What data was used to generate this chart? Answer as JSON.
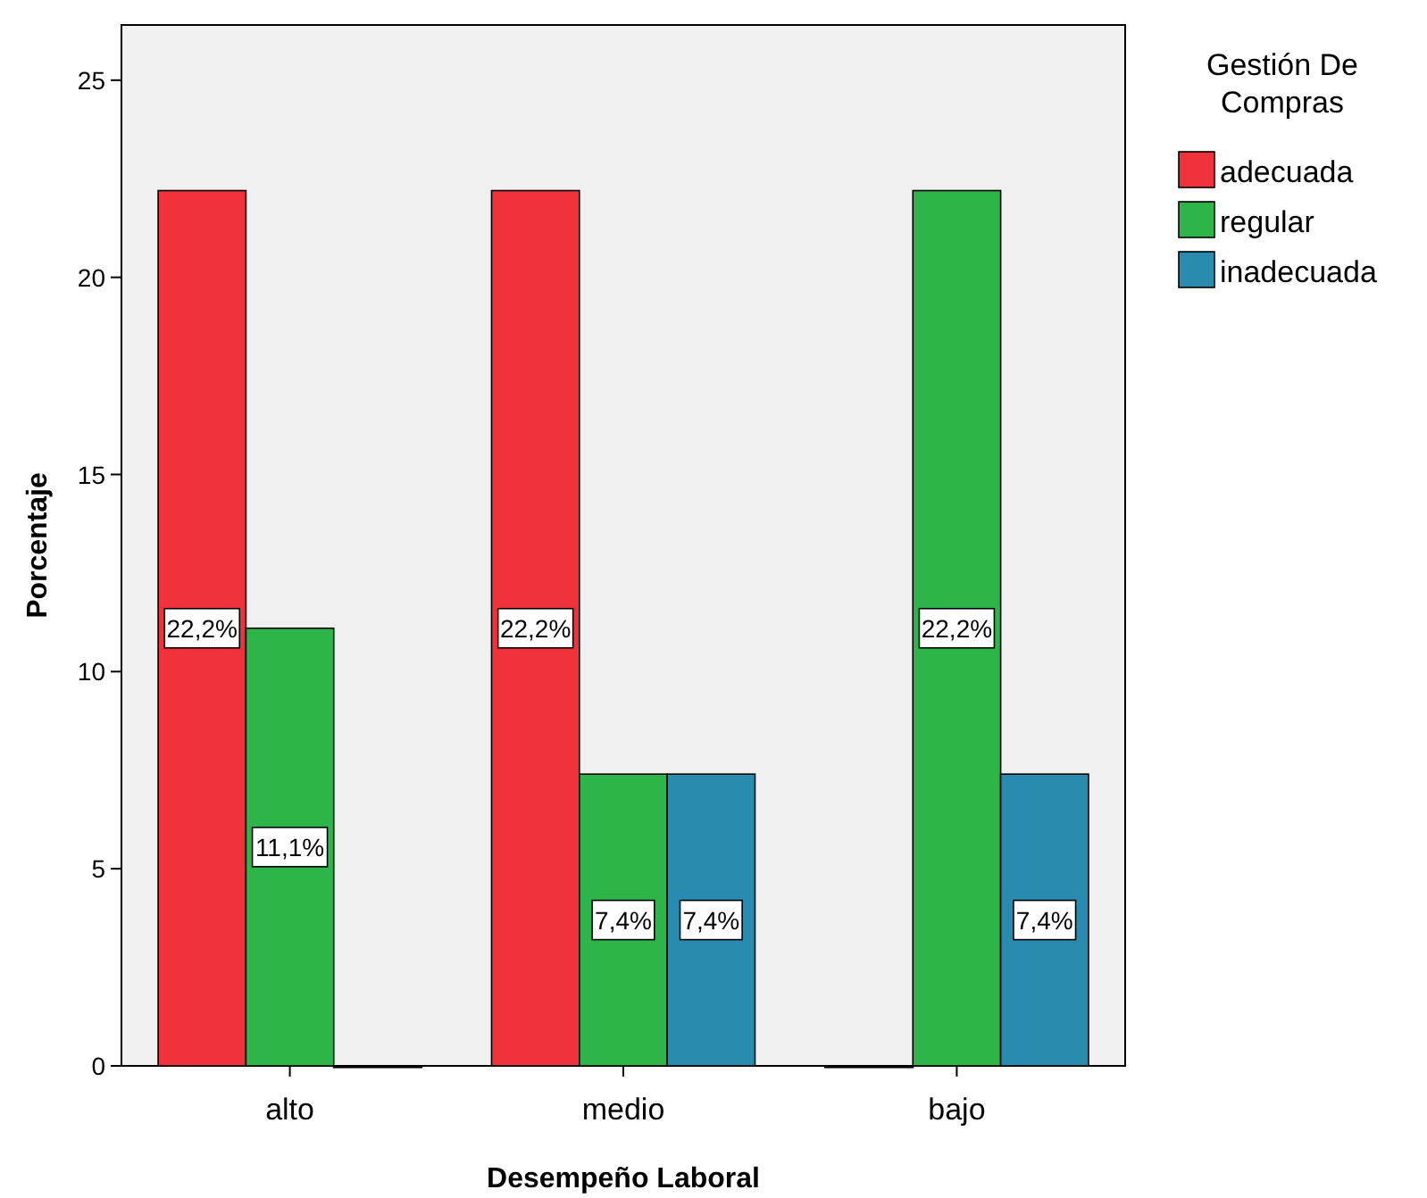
{
  "chart_data": {
    "type": "bar",
    "xlabel": "Desempeño Laboral",
    "ylabel": "Porcentaje",
    "legend_title": "Gestión De Compras",
    "categories": [
      "alto",
      "medio",
      "bajo"
    ],
    "series": [
      {
        "name": "adecuada",
        "color": "#f0323a",
        "values": [
          22.2,
          22.2,
          0
        ],
        "value_labels": [
          "22,2%",
          "22,2%",
          null
        ]
      },
      {
        "name": "regular",
        "color": "#2db54a",
        "values": [
          11.1,
          7.4,
          22.2
        ],
        "value_labels": [
          "11,1%",
          "7,4%",
          "22,2%"
        ]
      },
      {
        "name": "inadecuada",
        "color": "#2a8bb0",
        "values": [
          0,
          7.4,
          7.4
        ],
        "value_labels": [
          null,
          "7,4%",
          "7,4%"
        ]
      }
    ],
    "ylim": [
      0,
      26.4
    ],
    "yticks": [
      0,
      5,
      10,
      15,
      20,
      25
    ],
    "grid": false,
    "legend": "top right"
  }
}
